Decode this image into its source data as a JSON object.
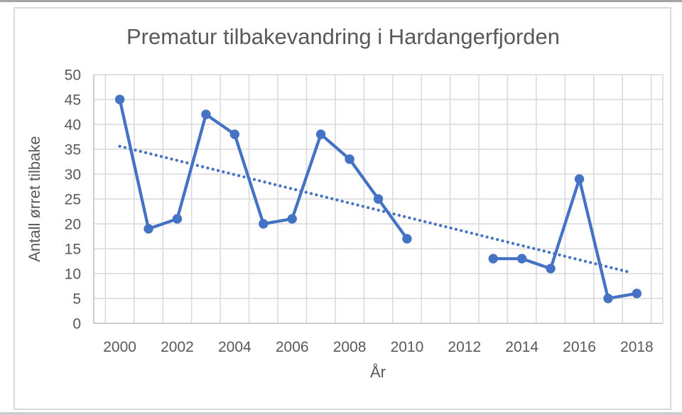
{
  "chart_data": {
    "type": "line",
    "title": "Prematur tilbakevandring i Hardangerfjorden",
    "xlabel": "År",
    "ylabel": "Antall ørret tilbake",
    "x": [
      2000,
      2001,
      2002,
      2003,
      2004,
      2005,
      2006,
      2007,
      2008,
      2009,
      2010,
      2011,
      2012,
      2013,
      2014,
      2015,
      2016,
      2017,
      2018
    ],
    "series": [
      {
        "name": "Antall ørret tilbake",
        "values": [
          45,
          19,
          21,
          42,
          38,
          20,
          21,
          38,
          33,
          25,
          17,
          null,
          null,
          13,
          13,
          11,
          29,
          5,
          6
        ]
      }
    ],
    "trendline": {
      "type": "linear",
      "style": "dotted",
      "x_start": 2000,
      "y_start": 35.6,
      "x_end": 2018,
      "y_end": 10.2
    },
    "ylim": [
      0,
      50
    ],
    "ytick_step": 5,
    "ytick_labels": [
      "0",
      "5",
      "10",
      "15",
      "20",
      "25",
      "30",
      "35",
      "40",
      "45",
      "50"
    ],
    "xtick_labels": [
      "2000",
      "2002",
      "2004",
      "2006",
      "2008",
      "2010",
      "2012",
      "2014",
      "2016",
      "2018"
    ],
    "grid": true,
    "legend": false,
    "colors": {
      "series": "#4472C4",
      "trendline": "#4472C4",
      "gridline": "#d9d9d9",
      "axis_line": "#bfbfbf",
      "text": "#595959",
      "background": "#ffffff",
      "card_border": "#d9d9d9"
    }
  }
}
